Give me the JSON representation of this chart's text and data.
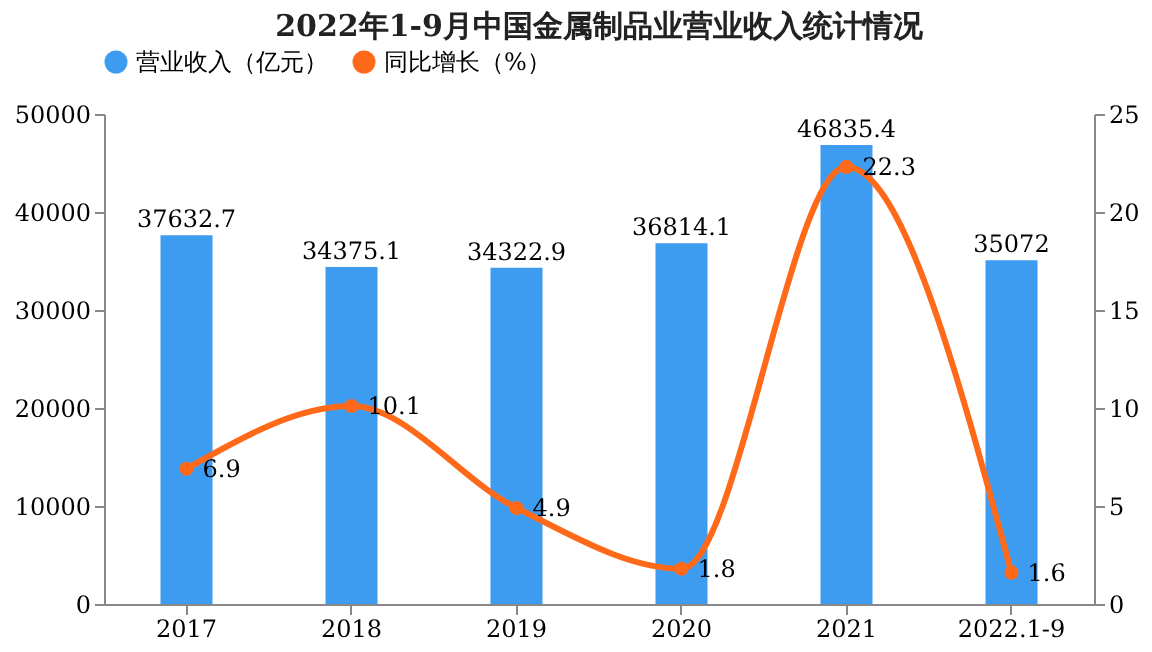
{
  "chart_data": {
    "type": "bar",
    "title": "2022年1-9月中国金属制品业营业收入统计情况",
    "categories": [
      "2017",
      "2018",
      "2019",
      "2020",
      "2021",
      "2022.1-9"
    ],
    "series": [
      {
        "name": "营业收入（亿元）",
        "color": "#3d9cf0",
        "values": [
          37632.7,
          34375.1,
          34322.9,
          36814.1,
          46835.4,
          35072
        ]
      },
      {
        "name": "同比增长（%）",
        "type": "line",
        "axis": "y2",
        "color": "#ff6a1a",
        "values": [
          6.9,
          10.1,
          4.9,
          1.8,
          22.3,
          1.6
        ]
      }
    ],
    "ylim": [
      0,
      50000
    ],
    "yticks": [
      0,
      10000,
      20000,
      30000,
      40000,
      50000
    ],
    "y2lim": [
      0,
      25
    ],
    "y2ticks": [
      0,
      5,
      10,
      15,
      20,
      25
    ],
    "data_labels": true,
    "legend": "top",
    "marker": "circle"
  }
}
